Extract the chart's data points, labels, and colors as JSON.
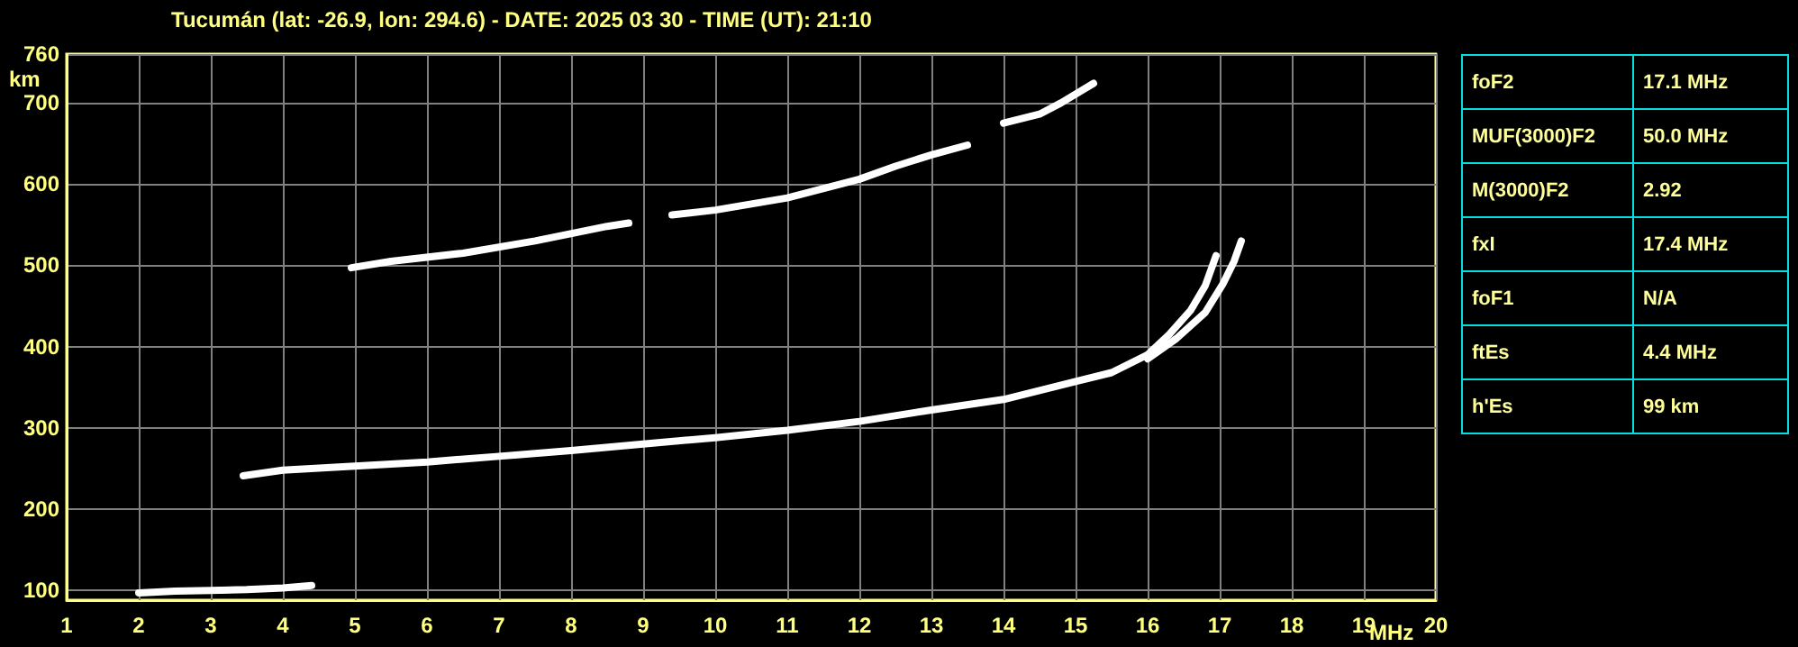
{
  "chart_data": [
    {
      "type": "line",
      "title": "Tucumán (lat: -26.9, lon: 294.6) - DATE: 2025 03 30 - TIME (UT): 21:10",
      "xlabel": "MHz",
      "ylabel": "km",
      "xlim": [
        1,
        20
      ],
      "xticks": [
        1,
        2,
        3,
        4,
        5,
        6,
        7,
        8,
        9,
        10,
        11,
        12,
        13,
        14,
        15,
        16,
        17,
        18,
        19,
        20
      ],
      "ylim": [
        88,
        760
      ],
      "yticks": [
        100,
        200,
        300,
        400,
        500,
        600,
        700,
        760
      ],
      "grid": true,
      "marker": "none",
      "line_style": "solid",
      "series": [
        {
          "color": "#ffffff",
          "x": [
            2.0,
            2.5,
            3.0,
            3.5,
            4.0,
            4.4
          ],
          "values": [
            97,
            99,
            100,
            101,
            103,
            106
          ]
        },
        {
          "color": "#ffffff",
          "x": [
            3.45,
            4.0,
            5.0,
            6.0,
            7.0,
            8.0,
            9.0,
            10.0,
            11.0,
            12.0,
            13.0,
            14.0,
            15.0,
            15.5,
            16.0,
            16.3,
            16.6,
            16.8,
            16.95
          ],
          "values": [
            241,
            248,
            253,
            258,
            265,
            272,
            280,
            288,
            297,
            308,
            322,
            335,
            357,
            368,
            390,
            415,
            445,
            475,
            512
          ]
        },
        {
          "color": "#ffffff",
          "x": [
            16.0,
            16.4,
            16.8,
            17.05,
            17.2,
            17.3
          ],
          "values": [
            385,
            410,
            442,
            478,
            505,
            530
          ]
        },
        {
          "color": "#ffffff",
          "x": [
            4.95,
            5.5,
            6.5,
            7.5,
            8.5,
            8.8
          ],
          "values": [
            497,
            505,
            515,
            530,
            548,
            552
          ]
        },
        {
          "color": "#ffffff",
          "x": [
            9.4,
            10.0,
            11.0,
            12.0,
            12.5,
            13.0,
            13.5
          ],
          "values": [
            562,
            568,
            583,
            606,
            622,
            636,
            648
          ]
        },
        {
          "color": "#ffffff",
          "x": [
            14.0,
            14.5,
            14.8,
            15.25
          ],
          "values": [
            675,
            686,
            700,
            724
          ]
        }
      ]
    },
    {
      "type": "other",
      "annotations": [
        "foF2",
        "17.1 MHz",
        "MUF(3000)F2",
        "50.0 MHz",
        "M(3000)F2",
        "2.92",
        "fxI",
        "17.4 MHz",
        "foF1",
        "N/A",
        "ftEs",
        "4.4 MHz",
        "h'Es",
        "99 km"
      ]
    }
  ]
}
